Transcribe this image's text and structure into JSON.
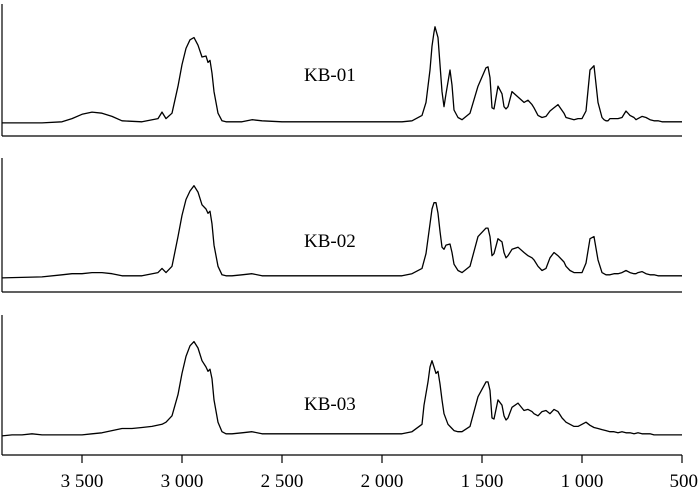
{
  "chart_data": {
    "type": "line",
    "xlabel": "",
    "ylabel": "",
    "x_reversed": true,
    "xlim": [
      3900,
      500
    ],
    "ylim": [
      0,
      1
    ],
    "grid": false,
    "x_ticks": [
      3500,
      3000,
      2500,
      2000,
      1500,
      1000,
      500
    ],
    "x_tick_labels": [
      "3 500",
      "3 000",
      "2 500",
      "2 000",
      "1 500",
      "1 000",
      "500"
    ],
    "series": [
      {
        "name": "KB-01",
        "x": [
          3900,
          3700,
          3600,
          3550,
          3500,
          3450,
          3400,
          3350,
          3300,
          3200,
          3120,
          3100,
          3080,
          3050,
          3020,
          3000,
          2980,
          2960,
          2940,
          2920,
          2900,
          2880,
          2870,
          2860,
          2850,
          2840,
          2820,
          2800,
          2780,
          2750,
          2700,
          2650,
          2600,
          2500,
          2400,
          2300,
          2200,
          2100,
          2000,
          1900,
          1850,
          1800,
          1780,
          1760,
          1750,
          1740,
          1735,
          1720,
          1710,
          1700,
          1690,
          1680,
          1660,
          1650,
          1640,
          1620,
          1600,
          1560,
          1520,
          1480,
          1470,
          1460,
          1450,
          1440,
          1420,
          1400,
          1390,
          1380,
          1370,
          1350,
          1320,
          1290,
          1270,
          1250,
          1240,
          1220,
          1200,
          1180,
          1160,
          1140,
          1120,
          1090,
          1080,
          1060,
          1040,
          1020,
          1000,
          980,
          960,
          940,
          920,
          900,
          890,
          880,
          870,
          860,
          840,
          820,
          800,
          780,
          760,
          740,
          730,
          720,
          700,
          680,
          660,
          640,
          620,
          600,
          580,
          560,
          540,
          520,
          500
        ],
        "values": [
          0.01,
          0.01,
          0.02,
          0.05,
          0.09,
          0.11,
          0.1,
          0.07,
          0.03,
          0.02,
          0.05,
          0.11,
          0.05,
          0.1,
          0.35,
          0.55,
          0.7,
          0.78,
          0.8,
          0.73,
          0.62,
          0.63,
          0.57,
          0.59,
          0.47,
          0.3,
          0.1,
          0.03,
          0.02,
          0.02,
          0.02,
          0.04,
          0.03,
          0.02,
          0.02,
          0.02,
          0.02,
          0.02,
          0.02,
          0.02,
          0.03,
          0.08,
          0.2,
          0.5,
          0.72,
          0.85,
          0.9,
          0.8,
          0.55,
          0.3,
          0.16,
          0.28,
          0.5,
          0.36,
          0.13,
          0.06,
          0.04,
          0.1,
          0.35,
          0.52,
          0.53,
          0.43,
          0.15,
          0.14,
          0.35,
          0.28,
          0.16,
          0.14,
          0.16,
          0.3,
          0.25,
          0.2,
          0.22,
          0.18,
          0.15,
          0.08,
          0.06,
          0.07,
          0.12,
          0.15,
          0.18,
          0.1,
          0.06,
          0.05,
          0.04,
          0.05,
          0.05,
          0.12,
          0.5,
          0.54,
          0.2,
          0.06,
          0.04,
          0.03,
          0.03,
          0.05,
          0.05,
          0.05,
          0.06,
          0.12,
          0.08,
          0.06,
          0.04,
          0.05,
          0.07,
          0.06,
          0.04,
          0.03,
          0.03,
          0.02,
          0.02,
          0.02,
          0.02,
          0.02,
          0.02
        ]
      },
      {
        "name": "KB-02",
        "x": [
          3900,
          3700,
          3600,
          3550,
          3500,
          3450,
          3400,
          3350,
          3300,
          3200,
          3120,
          3100,
          3080,
          3050,
          3020,
          3000,
          2980,
          2960,
          2940,
          2920,
          2900,
          2880,
          2870,
          2860,
          2850,
          2840,
          2820,
          2800,
          2780,
          2750,
          2700,
          2650,
          2600,
          2500,
          2400,
          2300,
          2200,
          2100,
          2000,
          1900,
          1850,
          1800,
          1780,
          1760,
          1750,
          1740,
          1730,
          1720,
          1710,
          1700,
          1690,
          1680,
          1660,
          1650,
          1640,
          1620,
          1600,
          1560,
          1520,
          1480,
          1470,
          1460,
          1450,
          1440,
          1420,
          1400,
          1390,
          1380,
          1370,
          1350,
          1320,
          1290,
          1270,
          1250,
          1240,
          1220,
          1200,
          1180,
          1160,
          1140,
          1120,
          1090,
          1080,
          1060,
          1040,
          1020,
          1000,
          980,
          960,
          940,
          920,
          900,
          890,
          880,
          870,
          860,
          840,
          820,
          800,
          780,
          760,
          740,
          730,
          720,
          700,
          680,
          660,
          640,
          620,
          600,
          580,
          560,
          540,
          520,
          500
        ],
        "values": [
          0.01,
          0.02,
          0.04,
          0.05,
          0.05,
          0.06,
          0.06,
          0.05,
          0.03,
          0.03,
          0.06,
          0.1,
          0.06,
          0.12,
          0.4,
          0.6,
          0.75,
          0.83,
          0.88,
          0.82,
          0.7,
          0.66,
          0.62,
          0.64,
          0.52,
          0.32,
          0.12,
          0.04,
          0.03,
          0.03,
          0.04,
          0.05,
          0.03,
          0.03,
          0.03,
          0.03,
          0.03,
          0.03,
          0.03,
          0.03,
          0.05,
          0.1,
          0.24,
          0.52,
          0.66,
          0.72,
          0.72,
          0.62,
          0.45,
          0.3,
          0.28,
          0.32,
          0.33,
          0.25,
          0.14,
          0.08,
          0.06,
          0.12,
          0.4,
          0.48,
          0.48,
          0.4,
          0.22,
          0.24,
          0.38,
          0.35,
          0.25,
          0.2,
          0.22,
          0.28,
          0.3,
          0.25,
          0.22,
          0.2,
          0.18,
          0.12,
          0.08,
          0.1,
          0.2,
          0.25,
          0.22,
          0.16,
          0.12,
          0.08,
          0.06,
          0.06,
          0.06,
          0.15,
          0.38,
          0.4,
          0.18,
          0.06,
          0.05,
          0.04,
          0.04,
          0.04,
          0.05,
          0.05,
          0.06,
          0.08,
          0.06,
          0.05,
          0.05,
          0.06,
          0.07,
          0.05,
          0.04,
          0.04,
          0.03,
          0.03,
          0.03,
          0.03,
          0.03,
          0.03,
          0.03
        ]
      },
      {
        "name": "KB-03",
        "x": [
          3900,
          3850,
          3800,
          3750,
          3700,
          3650,
          3600,
          3550,
          3500,
          3450,
          3400,
          3350,
          3300,
          3250,
          3200,
          3150,
          3100,
          3080,
          3050,
          3020,
          3000,
          2980,
          2960,
          2940,
          2920,
          2900,
          2880,
          2870,
          2860,
          2850,
          2840,
          2820,
          2800,
          2780,
          2750,
          2700,
          2650,
          2600,
          2500,
          2400,
          2300,
          2200,
          2100,
          2000,
          1900,
          1850,
          1800,
          1790,
          1770,
          1760,
          1750,
          1740,
          1730,
          1720,
          1710,
          1700,
          1690,
          1670,
          1650,
          1640,
          1620,
          1600,
          1560,
          1520,
          1480,
          1470,
          1460,
          1450,
          1440,
          1420,
          1400,
          1390,
          1380,
          1370,
          1350,
          1320,
          1290,
          1270,
          1250,
          1240,
          1220,
          1200,
          1180,
          1160,
          1140,
          1120,
          1100,
          1090,
          1080,
          1060,
          1040,
          1020,
          1000,
          980,
          960,
          940,
          920,
          900,
          880,
          860,
          840,
          820,
          800,
          780,
          760,
          740,
          720,
          700,
          680,
          660,
          640,
          620,
          600,
          580,
          560,
          540,
          520,
          500
        ],
        "values": [
          0.01,
          0.02,
          0.02,
          0.03,
          0.02,
          0.02,
          0.02,
          0.02,
          0.02,
          0.03,
          0.04,
          0.06,
          0.08,
          0.08,
          0.09,
          0.1,
          0.12,
          0.14,
          0.2,
          0.4,
          0.6,
          0.76,
          0.86,
          0.9,
          0.84,
          0.72,
          0.66,
          0.62,
          0.64,
          0.55,
          0.35,
          0.14,
          0.05,
          0.03,
          0.03,
          0.04,
          0.05,
          0.03,
          0.03,
          0.03,
          0.03,
          0.03,
          0.03,
          0.03,
          0.03,
          0.05,
          0.12,
          0.3,
          0.52,
          0.66,
          0.72,
          0.66,
          0.6,
          0.62,
          0.5,
          0.35,
          0.22,
          0.12,
          0.08,
          0.06,
          0.05,
          0.05,
          0.1,
          0.38,
          0.52,
          0.52,
          0.44,
          0.18,
          0.17,
          0.35,
          0.3,
          0.2,
          0.16,
          0.18,
          0.28,
          0.32,
          0.25,
          0.26,
          0.24,
          0.22,
          0.2,
          0.24,
          0.25,
          0.22,
          0.26,
          0.24,
          0.18,
          0.16,
          0.14,
          0.12,
          0.1,
          0.1,
          0.12,
          0.14,
          0.11,
          0.09,
          0.08,
          0.07,
          0.06,
          0.05,
          0.05,
          0.04,
          0.05,
          0.04,
          0.04,
          0.03,
          0.04,
          0.03,
          0.03,
          0.03,
          0.02,
          0.02,
          0.02,
          0.02,
          0.02,
          0.02,
          0.02,
          0.02
        ]
      }
    ]
  }
}
